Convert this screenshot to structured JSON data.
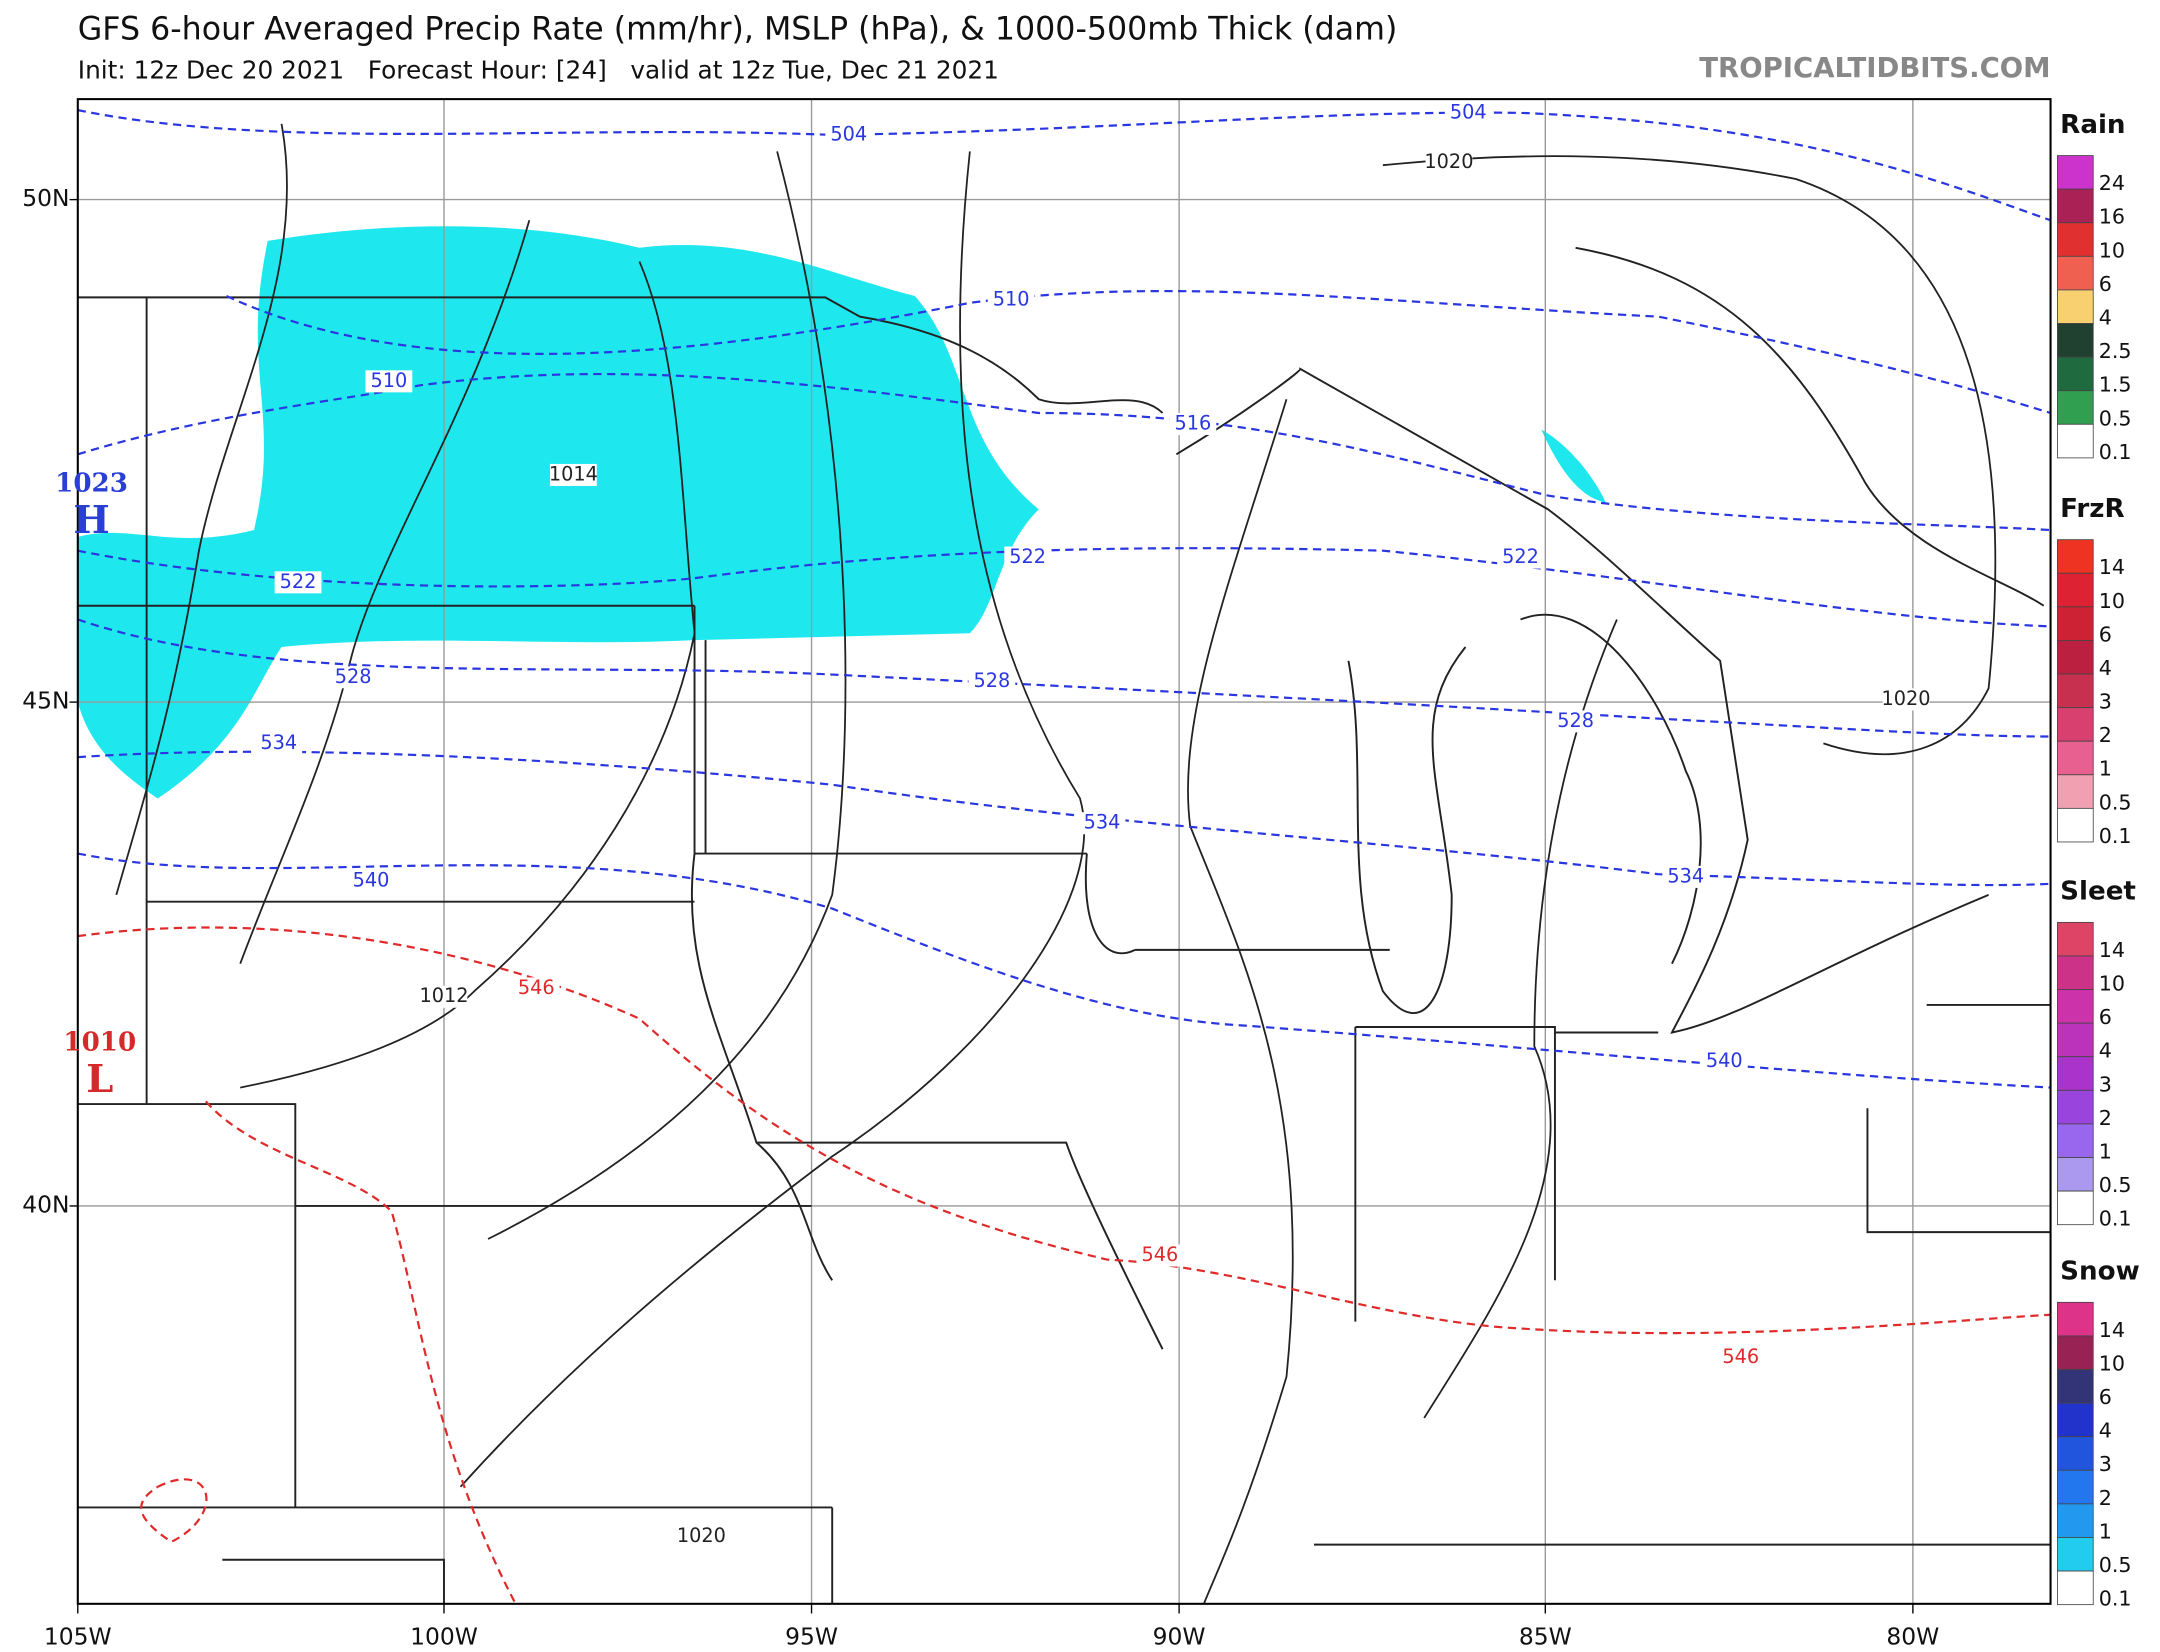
{
  "header": {
    "title": "GFS 6-hour Averaged Precip Rate (mm/hr), MSLP (hPa), & 1000-500mb Thick (dam)",
    "subtitle": "Init: 12z Dec 20 2021   Forecast Hour: [24]   valid at 12z Tue, Dec 21 2021",
    "brand": "TROPICALTIDBITS.COM"
  },
  "map": {
    "lat_labels": [
      "50N",
      "45N",
      "40N"
    ],
    "lon_labels": [
      "105W",
      "100W",
      "95W",
      "90W",
      "85W",
      "80W"
    ],
    "pressure_centers": [
      {
        "value": 1023,
        "letter": "H",
        "color": "#2a3fd6"
      },
      {
        "value": 1010,
        "letter": "L",
        "color": "#d42a2a"
      }
    ],
    "isobar_labels": [
      1014,
      1012,
      1020,
      1020,
      1020
    ],
    "thickness_labels_cold": [
      504,
      504,
      510,
      510,
      516,
      522,
      522,
      522,
      528,
      528,
      528,
      534,
      534,
      534,
      540,
      540
    ],
    "thickness_labels_warm": [
      546,
      546,
      546
    ],
    "cold_color": "#2a36e0",
    "warm_color": "#e02a2a",
    "precip_color": "#1ee8ee"
  },
  "legend": [
    {
      "title": "Rain",
      "labels": [
        24,
        16,
        10,
        6,
        4,
        2.5,
        1.5,
        0.5,
        0.1
      ],
      "colors": [
        "#cc33cc",
        "#aa2255",
        "#e03030",
        "#f06050",
        "#f8d070",
        "#204030",
        "#206a40",
        "#30a050",
        "#ffffff"
      ]
    },
    {
      "title": "FrzR",
      "labels": [
        14,
        10,
        6,
        4,
        3,
        2,
        1,
        0.5,
        0.1
      ],
      "colors": [
        "#ee3322",
        "#dd2233",
        "#cc2233",
        "#bb2040",
        "#c83050",
        "#d84070",
        "#e86090",
        "#f0a0b0",
        "#ffffff"
      ]
    },
    {
      "title": "Sleet",
      "labels": [
        14,
        10,
        6,
        4,
        3,
        2,
        1,
        0.5,
        0.1
      ],
      "colors": [
        "#dd4466",
        "#cc3388",
        "#cc33aa",
        "#bb33bb",
        "#aa33cc",
        "#9944dd",
        "#9966ee",
        "#aa99ee",
        "#ffffff"
      ]
    },
    {
      "title": "Snow",
      "labels": [
        14,
        10,
        6,
        4,
        3,
        2,
        1,
        0.5,
        0.1
      ],
      "colors": [
        "#dd3388",
        "#992255",
        "#333377",
        "#2233cc",
        "#2255dd",
        "#2277ee",
        "#2299ee",
        "#22ccee",
        "#ffffff"
      ]
    }
  ]
}
